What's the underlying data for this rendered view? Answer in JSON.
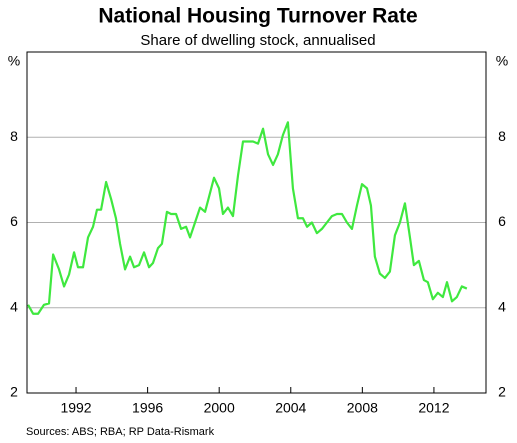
{
  "chart_data": {
    "type": "line",
    "title": "National Housing Turnover Rate",
    "subtitle": "Share of dwelling stock, annualised",
    "y_unit": "%",
    "source": "Sources: ABS; RBA; RP Data-Rismark",
    "x": [
      1989.32,
      1989.6,
      1989.88,
      1990.21,
      1990.49,
      1990.72,
      1991.05,
      1991.33,
      1991.61,
      1991.89,
      1992.11,
      1992.39,
      1992.67,
      1992.95,
      1993.17,
      1993.4,
      1993.68,
      1993.96,
      1994.23,
      1994.46,
      1994.74,
      1995.02,
      1995.24,
      1995.52,
      1995.8,
      1996.08,
      1996.3,
      1996.58,
      1996.8,
      1997.08,
      1997.31,
      1997.59,
      1997.87,
      1998.15,
      1998.37,
      1998.65,
      1998.93,
      1999.21,
      1999.43,
      1999.71,
      1999.99,
      2000.21,
      2000.49,
      2000.77,
      2001.05,
      2001.33,
      2001.61,
      2001.89,
      2002.17,
      2002.45,
      2002.73,
      2003.01,
      2003.28,
      2003.56,
      2003.84,
      2004.12,
      2004.4,
      2004.68,
      2004.91,
      2005.18,
      2005.46,
      2005.74,
      2006.02,
      2006.3,
      2006.58,
      2006.86,
      2007.14,
      2007.42,
      2007.7,
      2007.98,
      2008.26,
      2008.48,
      2008.7,
      2008.98,
      2009.26,
      2009.54,
      2009.82,
      2010.1,
      2010.38,
      2010.66,
      2010.88,
      2011.16,
      2011.44,
      2011.66,
      2011.94,
      2012.22,
      2012.5,
      2012.73,
      2013.01,
      2013.28,
      2013.56,
      2013.84
    ],
    "values": [
      4.07,
      3.86,
      3.86,
      4.07,
      4.1,
      5.25,
      4.9,
      4.5,
      4.78,
      5.3,
      4.95,
      4.95,
      5.65,
      5.9,
      6.3,
      6.3,
      6.95,
      6.55,
      6.1,
      5.5,
      4.9,
      5.2,
      4.95,
      5.0,
      5.3,
      4.95,
      5.05,
      5.4,
      5.5,
      6.25,
      6.2,
      6.2,
      5.85,
      5.9,
      5.65,
      6.0,
      6.35,
      6.25,
      6.6,
      7.05,
      6.8,
      6.2,
      6.35,
      6.15,
      7.1,
      7.9,
      7.9,
      7.9,
      7.85,
      8.2,
      7.6,
      7.35,
      7.6,
      8.05,
      8.35,
      6.8,
      6.1,
      6.1,
      5.9,
      6.0,
      5.75,
      5.85,
      6.0,
      6.15,
      6.2,
      6.2,
      6.0,
      5.85,
      6.4,
      6.9,
      6.8,
      6.4,
      5.2,
      4.8,
      4.7,
      4.85,
      5.7,
      6.0,
      6.45,
      5.65,
      5.0,
      5.1,
      4.65,
      4.6,
      4.2,
      4.35,
      4.25,
      4.6,
      4.15,
      4.25,
      4.5,
      4.45
    ],
    "color": "#3fe83f",
    "xlim": [
      1989.26,
      2014.91
    ],
    "xticks": [
      1992,
      1996,
      2000,
      2004,
      2008,
      2012
    ],
    "ylim": [
      2,
      10
    ],
    "yticks": [
      2,
      4,
      6,
      8
    ],
    "grid": true
  }
}
